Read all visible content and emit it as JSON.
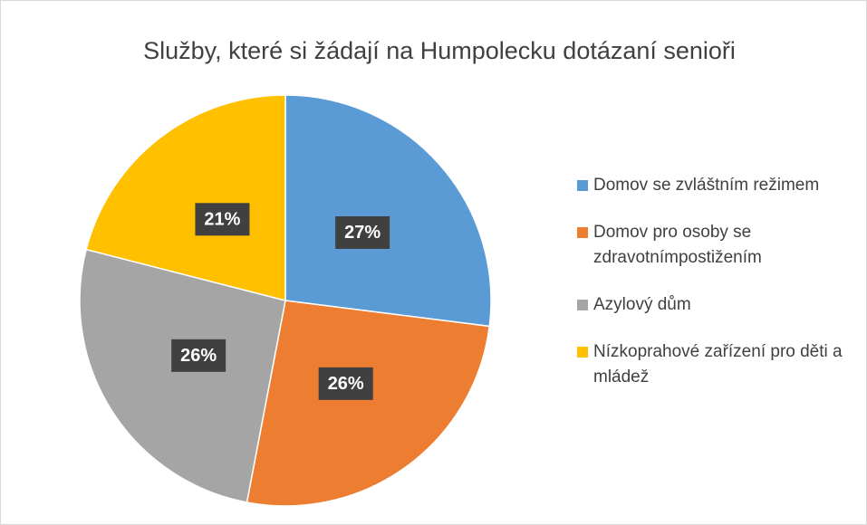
{
  "chart_data": {
    "type": "pie",
    "title": "Služby, které si žádají na Humpolecku dotázaní senioři",
    "categories": [
      "Domov se zvláštním režimem",
      "Domov pro osoby se zdravotnímpostižením",
      "Azylový dům",
      "Nízkoprahové zařízení pro děti a mládež"
    ],
    "values": [
      27,
      26,
      26,
      21
    ],
    "value_labels": [
      "27%",
      "26%",
      "26%",
      "21%"
    ],
    "colors": [
      "#5b9bd5",
      "#ed7d31",
      "#a5a5a5",
      "#ffc000"
    ],
    "legend": "right"
  }
}
